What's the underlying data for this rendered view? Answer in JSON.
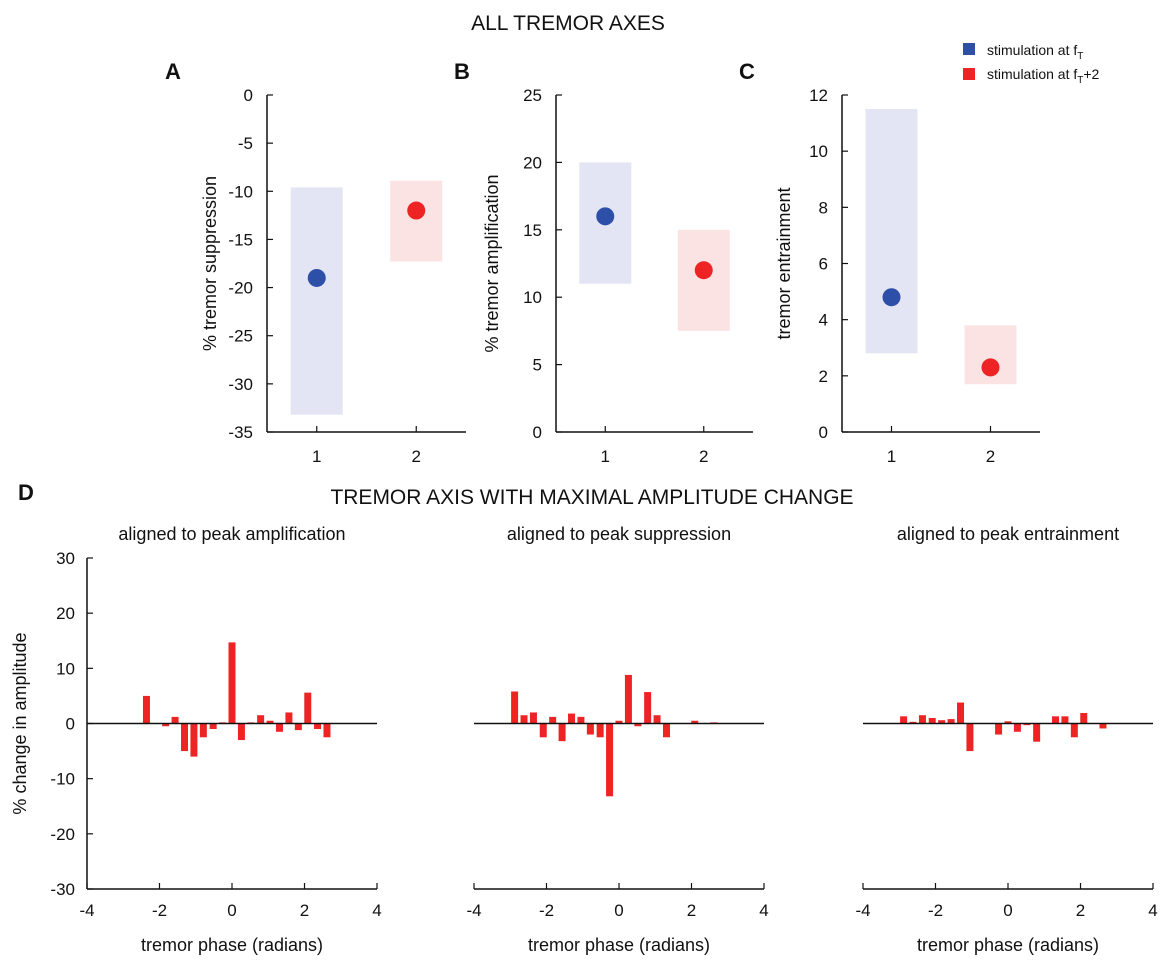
{
  "figure": {
    "title_top": "ALL TREMOR AXES",
    "title_bottom": "TREMOR AXIS WITH MAXIMAL AMPLITUDE CHANGE",
    "panel_letters": [
      "A",
      "B",
      "C",
      "D"
    ],
    "legend": [
      {
        "label_main": "stimulation at f",
        "label_sub": "T",
        "label_tail": "",
        "color": "#2e4fa8"
      },
      {
        "label_main": "stimulation at f",
        "label_sub": "T",
        "label_tail": "+2",
        "color": "#ee2424"
      }
    ]
  },
  "colors": {
    "blue": "#2e4fa8",
    "blue_band": "#e3e5f4",
    "red": "#ee2424",
    "red_band": "#fbe3e3",
    "bar": "#ee2424"
  },
  "chart_data": [
    {
      "type": "scatter",
      "panel": "A",
      "ylabel": "% tremor suppression",
      "ylim": [
        -35,
        0
      ],
      "yticks": [
        0,
        -5,
        -10,
        -15,
        -20,
        -25,
        -30,
        -35
      ],
      "xlim": [
        0.5,
        2.5
      ],
      "xticks": [
        1,
        2
      ],
      "points": [
        {
          "x": 1,
          "y": -19,
          "low": -33.2,
          "high": -9.6,
          "series": "stimulation at fT"
        },
        {
          "x": 2,
          "y": -12,
          "low": -17.3,
          "high": -8.9,
          "series": "stimulation at fT+2"
        }
      ]
    },
    {
      "type": "scatter",
      "panel": "B",
      "ylabel": "% tremor amplification",
      "ylim": [
        0,
        25
      ],
      "yticks": [
        0,
        5,
        10,
        15,
        20,
        25
      ],
      "xlim": [
        0.5,
        2.5
      ],
      "xticks": [
        1,
        2
      ],
      "points": [
        {
          "x": 1,
          "y": 16,
          "low": 11,
          "high": 20,
          "series": "stimulation at fT"
        },
        {
          "x": 2,
          "y": 12,
          "low": 7.5,
          "high": 15,
          "series": "stimulation at fT+2"
        }
      ]
    },
    {
      "type": "scatter",
      "panel": "C",
      "ylabel": "tremor entrainment",
      "ylim": [
        0,
        12
      ],
      "yticks": [
        0,
        2,
        4,
        6,
        8,
        10,
        12
      ],
      "xlim": [
        0.5,
        2.5
      ],
      "xticks": [
        1,
        2
      ],
      "points": [
        {
          "x": 1,
          "y": 4.8,
          "low": 2.8,
          "high": 11.5,
          "series": "stimulation at fT"
        },
        {
          "x": 2,
          "y": 2.3,
          "low": 1.7,
          "high": 3.8,
          "series": "stimulation at fT+2"
        }
      ]
    },
    {
      "type": "bar",
      "panel": "D1",
      "title": "aligned to peak amplification",
      "xlabel": "tremor phase (radians)",
      "ylabel": "% change in amplitude",
      "ylim": [
        -30,
        30
      ],
      "yticks": [
        30,
        20,
        10,
        0,
        -10,
        -20,
        -30
      ],
      "xlim": [
        -4,
        4
      ],
      "xticks": [
        -4,
        -2,
        0,
        2,
        4
      ],
      "x": [
        -2.36,
        -2.09,
        -1.83,
        -1.57,
        -1.31,
        -1.05,
        -0.79,
        -0.52,
        -0.26,
        0,
        0.26,
        0.52,
        0.79,
        1.05,
        1.31,
        1.57,
        1.83,
        2.09,
        2.36,
        2.62,
        2.88,
        3.14
      ],
      "values": [
        5,
        0,
        -0.5,
        1.2,
        -5,
        -6,
        -2.5,
        -1,
        0.2,
        14.7,
        -3,
        0.2,
        1.5,
        0.5,
        -1.5,
        2,
        -1.2,
        5.6,
        -1,
        -2.5,
        0,
        0
      ]
    },
    {
      "type": "bar",
      "panel": "D2",
      "title": "aligned to peak suppression",
      "xlabel": "tremor phase (radians)",
      "ylim": [
        -30,
        30
      ],
      "xlim": [
        -4,
        4
      ],
      "xticks": [
        -4,
        -2,
        0,
        2,
        4
      ],
      "x": [
        -2.88,
        -2.62,
        -2.36,
        -2.09,
        -1.83,
        -1.57,
        -1.31,
        -1.05,
        -0.79,
        -0.52,
        -0.26,
        0,
        0.26,
        0.52,
        0.79,
        1.05,
        1.31,
        1.57,
        1.83,
        2.09,
        2.36,
        2.62,
        2.88
      ],
      "values": [
        5.8,
        1.5,
        2,
        -2.5,
        1.2,
        -3.2,
        1.8,
        1.2,
        -2,
        -2.5,
        -13.2,
        0.5,
        8.8,
        -0.5,
        5.7,
        1.5,
        -2.5,
        0,
        0,
        0.5,
        0,
        0.2,
        0
      ]
    },
    {
      "type": "bar",
      "panel": "D3",
      "title": "aligned to peak entrainment",
      "xlabel": "tremor phase (radians)",
      "ylim": [
        -30,
        30
      ],
      "xlim": [
        -4,
        4
      ],
      "xticks": [
        -4,
        -2,
        0,
        2,
        4
      ],
      "x": [
        -2.88,
        -2.62,
        -2.36,
        -2.09,
        -1.83,
        -1.57,
        -1.31,
        -1.05,
        -0.79,
        -0.52,
        -0.26,
        0,
        0.26,
        0.52,
        0.79,
        1.05,
        1.31,
        1.57,
        1.83,
        2.09,
        2.36,
        2.62,
        2.88
      ],
      "values": [
        1.3,
        0.3,
        1.5,
        1,
        0.6,
        0.8,
        3.8,
        -5,
        0,
        0,
        -2,
        0.4,
        -1.5,
        -0.3,
        -3.3,
        0.1,
        1.3,
        1.3,
        -2.5,
        1.9,
        0,
        -0.9,
        0
      ]
    }
  ]
}
